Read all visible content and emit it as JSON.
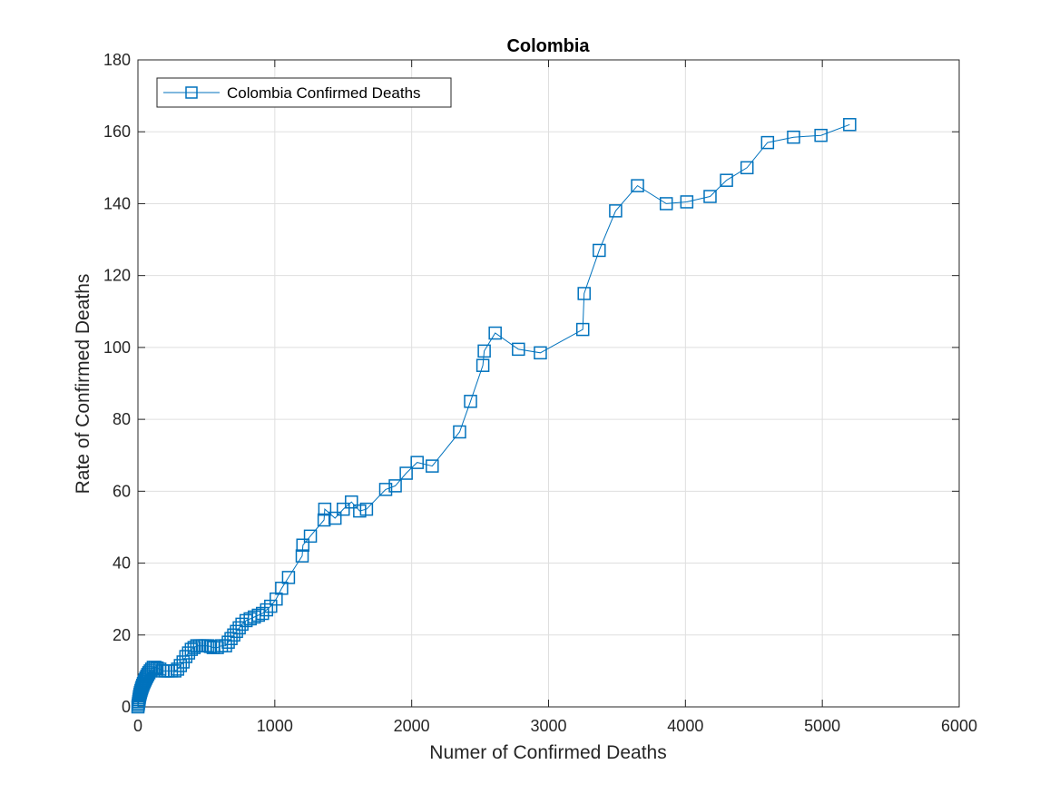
{
  "chart_data": {
    "type": "line",
    "title": "Colombia",
    "xlabel": "Numer of Confirmed Deaths",
    "ylabel": "Rate of Confirmed Deaths",
    "xlim": [
      0,
      6000
    ],
    "ylim": [
      0,
      180
    ],
    "xticks": [
      0,
      1000,
      2000,
      3000,
      4000,
      5000,
      6000
    ],
    "yticks": [
      0,
      20,
      40,
      60,
      80,
      100,
      120,
      140,
      160,
      180
    ],
    "grid": true,
    "legend_position": "top-left",
    "marker": "square",
    "series": [
      {
        "name": "Colombia Confirmed Deaths",
        "color": "#0072BD",
        "x": [
          0,
          2,
          4,
          6,
          8,
          10,
          12,
          15,
          18,
          22,
          26,
          30,
          35,
          40,
          46,
          52,
          58,
          65,
          72,
          80,
          90,
          100,
          112,
          125,
          140,
          160,
          180,
          200,
          220,
          245,
          270,
          290,
          310,
          330,
          350,
          370,
          390,
          410,
          430,
          450,
          470,
          490,
          510,
          530,
          550,
          580,
          610,
          640,
          660,
          680,
          700,
          720,
          740,
          760,
          790,
          820,
          850,
          880,
          910,
          940,
          970,
          1010,
          1050,
          1100,
          1200,
          1205,
          1260,
          1360,
          1365,
          1440,
          1500,
          1560,
          1620,
          1670,
          1810,
          1880,
          1960,
          2040,
          2150,
          2350,
          2430,
          2520,
          2530,
          2610,
          2780,
          2940,
          3250,
          3260,
          3370,
          3490,
          3650,
          3860,
          4010,
          4180,
          4300,
          4450,
          4600,
          4790,
          4990,
          5200
        ],
        "y": [
          0,
          0.5,
          1,
          1.5,
          2,
          2.5,
          3,
          3.5,
          4,
          4.5,
          5,
          5.5,
          6,
          6.5,
          7,
          7.5,
          8,
          8.5,
          9,
          9.5,
          10,
          10.5,
          11,
          11,
          10.8,
          10.5,
          10,
          10,
          10,
          10,
          10,
          10.5,
          11.5,
          12.5,
          14,
          15,
          16,
          16.5,
          17,
          17,
          17,
          17,
          17,
          16.8,
          16.5,
          16.5,
          17,
          17,
          18,
          19,
          20,
          21,
          22,
          23,
          24,
          24.5,
          25,
          25.5,
          26,
          27,
          28,
          30,
          33,
          36,
          42,
          45,
          47.5,
          52,
          55,
          52.5,
          55,
          57,
          54.5,
          55,
          60.5,
          61.5,
          65,
          68,
          67,
          76.5,
          85,
          95,
          99,
          104,
          99.5,
          98.5,
          105,
          115,
          127,
          138,
          145,
          140,
          140.5,
          142,
          146.5,
          150,
          157,
          158.5,
          159,
          162
        ]
      }
    ]
  }
}
